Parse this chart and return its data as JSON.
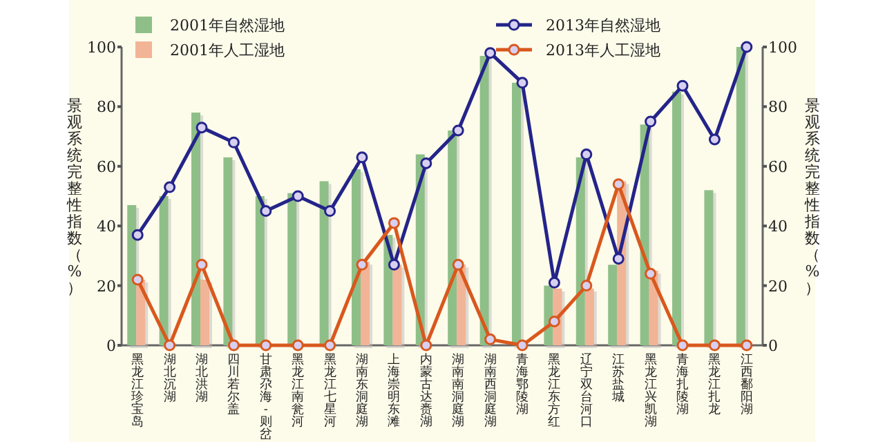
{
  "chart_data": {
    "type": "bar",
    "categories": [
      "黑龙江珍宝岛",
      "湖北沉湖",
      "湖北洪湖",
      "四川若尔盖",
      "甘肃尕海-则岔",
      "黑龙江南瓮河",
      "黑龙江七星河",
      "湖南东洞庭湖",
      "上海崇明东滩",
      "内蒙古达赉湖",
      "湖南南洞庭湖",
      "湖南西洞庭湖",
      "青海鄂陵湖",
      "黑龙江东方红",
      "辽宁双台河口",
      "江苏盐城",
      "黑龙江兴凯湖",
      "青海扎陵湖",
      "黑龙江扎龙",
      "江西鄱阳湖"
    ],
    "series": [
      {
        "name": "2001年自然湿地",
        "color": "#8fbf88",
        "values": [
          47,
          50,
          78,
          63,
          50,
          51,
          55,
          59,
          37,
          64,
          72,
          97,
          88,
          20,
          63,
          27,
          74,
          85,
          52,
          100
        ]
      },
      {
        "name": "2001年人工湿地",
        "color": "#f2b496",
        "values": [
          22,
          0,
          22,
          0,
          0,
          0,
          0,
          28,
          27,
          0,
          27,
          0,
          0,
          19,
          19,
          55,
          25,
          0,
          0,
          0
        ]
      },
      {
        "name": "2013年自然湿地",
        "type": "line",
        "color": "#24248a",
        "values": [
          37,
          53,
          73,
          68,
          45,
          50,
          45,
          63,
          27,
          61,
          72,
          98,
          88,
          21,
          64,
          29,
          75,
          87,
          69,
          100
        ]
      },
      {
        "name": "2013年人工湿地",
        "type": "line",
        "color": "#d9581e",
        "values": [
          22,
          0,
          27,
          0,
          0,
          0,
          0,
          27,
          41,
          0,
          27,
          2,
          0,
          8,
          20,
          54,
          24,
          0,
          0,
          0
        ]
      }
    ],
    "ylabel": "景观系统完整性指数（%）",
    "y2label": "景观系统完整性指数（%）",
    "ylim": [
      0,
      100
    ],
    "yticks": [
      0,
      20,
      40,
      60,
      80,
      100
    ],
    "y2lim": [
      0,
      100
    ],
    "y2ticks": [
      0,
      20,
      40,
      60,
      80,
      100
    ],
    "marker": "circle",
    "line_style": "solid",
    "grid": false,
    "legend": "top"
  }
}
